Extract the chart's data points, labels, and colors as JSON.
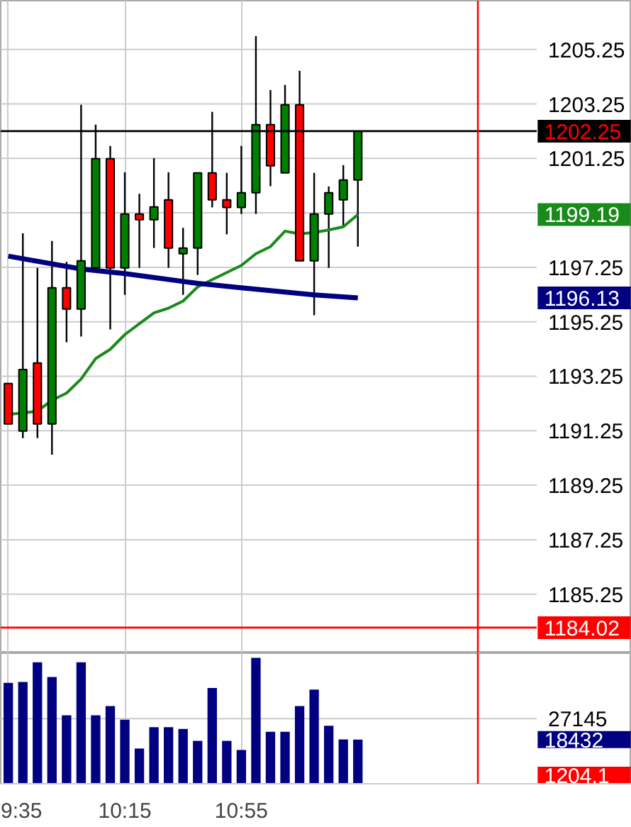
{
  "chart_data": [
    {
      "type": "candlestick",
      "x": [
        9.5833,
        9.6667,
        9.75,
        9.8333,
        9.9167,
        10.0,
        10.0833,
        10.1667,
        10.25,
        10.3333,
        10.4167,
        10.5,
        10.5833,
        10.6667,
        10.75,
        10.8333,
        10.9167,
        11.0,
        11.0833,
        11.1667,
        11.25,
        11.3333,
        11.4167,
        11.5,
        11.5833
      ],
      "ohlc": [
        [
          1192.98,
          1192.98,
          1191.5,
          1191.5
        ],
        [
          1191.24,
          1198.5,
          1190.98,
          1193.5
        ],
        [
          1193.74,
          1197.23,
          1190.98,
          1191.5
        ],
        [
          1191.5,
          1198.22,
          1190.37,
          1196.5
        ],
        [
          1196.5,
          1197.45,
          1194.5,
          1195.72
        ],
        [
          1195.72,
          1203.22,
          1194.71,
          1197.49
        ],
        [
          1197.23,
          1202.49,
          1197.23,
          1201.24
        ],
        [
          1201.24,
          1201.71,
          1194.97,
          1197.23
        ],
        [
          1197.23,
          1200.74,
          1196.24,
          1199.21
        ],
        [
          1199.21,
          1199.95,
          1197.23,
          1199.0
        ],
        [
          1199.0,
          1201.26,
          1197.96,
          1199.47
        ],
        [
          1199.73,
          1200.74,
          1197.23,
          1197.96
        ],
        [
          1197.75,
          1198.7,
          1196.24,
          1197.96
        ],
        [
          1197.96,
          1200.72,
          1196.97,
          1200.72
        ],
        [
          1200.72,
          1202.96,
          1199.45,
          1199.73
        ],
        [
          1199.73,
          1200.72,
          1198.46,
          1199.45
        ],
        [
          1199.45,
          1201.71,
          1199.21,
          1199.99
        ],
        [
          1199.99,
          1205.74,
          1199.21,
          1202.49
        ],
        [
          1202.49,
          1203.76,
          1200.23,
          1200.98
        ],
        [
          1200.72,
          1203.95,
          1200.72,
          1203.22
        ],
        [
          1203.22,
          1204.47,
          1197.49,
          1197.49
        ],
        [
          1197.49,
          1200.72,
          1195.49,
          1199.21
        ],
        [
          1199.21,
          1200.22,
          1197.23,
          1199.99
        ],
        [
          1199.73,
          1201.0,
          1198.72,
          1200.46
        ],
        [
          1200.46,
          1202.25,
          1198.01,
          1202.25
        ]
      ],
      "colors": [
        "#ff0000",
        "#008000",
        "#ff0000",
        "#008000",
        "#ff0000",
        "#008000",
        "#008000",
        "#ff0000",
        "#008000",
        "#ff0000",
        "#008000",
        "#ff0000",
        "#008000",
        "#008000",
        "#ff0000",
        "#ff0000",
        "#008000",
        "#008000",
        "#ff0000",
        "#008000",
        "#ff0000",
        "#008000",
        "#008000",
        "#008000",
        "#008000"
      ],
      "series": [
        {
          "type": "line",
          "color": "#1a8a1a",
          "values": [
            1191.85,
            1191.9,
            1191.97,
            1192.37,
            1192.63,
            1193.15,
            1193.9,
            1194.24,
            1194.78,
            1195.18,
            1195.58,
            1195.75,
            1196.01,
            1196.53,
            1196.8,
            1197.06,
            1197.32,
            1197.75,
            1198.01,
            1198.58,
            1198.48,
            1198.53,
            1198.62,
            1198.74,
            1199.19
          ]
        },
        {
          "type": "line",
          "color": "#000080",
          "x": [
            9.5833,
            10.0,
            10.25,
            10.6667,
            10.9167,
            11.3333,
            11.5833
          ],
          "values": [
            1197.66,
            1197.19,
            1197.02,
            1196.66,
            1196.5,
            1196.24,
            1196.13
          ]
        }
      ],
      "ylim": [
        1183.08,
        1207.04
      ],
      "yticks": [
        1205.25,
        1203.25,
        1201.25,
        {
          "value": 1199.25,
          "label": null
        },
        1197.25,
        1195.25,
        1193.25,
        1191.25,
        1189.25,
        1187.25,
        1185.25
      ],
      "xlim": [
        9.54,
        13.15
      ],
      "xticks": [
        {
          "value": 9.5833,
          "label": null
        },
        {
          "value": 10.25,
          "label": null
        },
        {
          "value": 10.9167,
          "label": null
        }
      ],
      "tick_labels": "y",
      "grid": true,
      "ref_lines": [
        {
          "axis": "y",
          "value": 1202.25,
          "label": "1202.25",
          "color": "#000000"
        },
        {
          "axis": "y",
          "value": 1184.02,
          "label": "1184.02",
          "color": "#ff0000"
        },
        {
          "axis": "x",
          "value": 12.27,
          "color": "#ff0000"
        }
      ],
      "annotations": [
        "1199.19",
        "1196.13"
      ]
    },
    {
      "type": "bar",
      "x": [
        9.5833,
        9.6667,
        9.75,
        9.8333,
        9.9167,
        10.0,
        10.0833,
        10.1667,
        10.25,
        10.3333,
        10.4167,
        10.5,
        10.5833,
        10.6667,
        10.75,
        10.8333,
        10.9167,
        11.0,
        11.0833,
        11.1667,
        11.25,
        11.3333,
        11.4167,
        11.5,
        11.5833
      ],
      "series": [
        {
          "color": "#000080",
          "values": [
            42100,
            42500,
            50700,
            44600,
            28600,
            50700,
            28600,
            32400,
            26700,
            14700,
            23600,
            23600,
            22900,
            17900,
            40000,
            17900,
            14100,
            52600,
            21700,
            21700,
            32400,
            39300,
            24200,
            18500,
            18432
          ]
        }
      ],
      "ylim": [
        0,
        54500
      ],
      "yticks": [
        27145
      ],
      "xlim": [
        9.54,
        13.15
      ],
      "xticks": [
        {
          "value": 9.5833,
          "label": "9:35"
        },
        {
          "value": 10.25,
          "label": "10:15"
        },
        {
          "value": 10.9167,
          "label": "10:55"
        }
      ],
      "grid": true,
      "ref_lines": [
        {
          "axis": "x",
          "value": 12.27,
          "color": "#ff0000"
        }
      ],
      "annotations": [
        "18432",
        "1204.1"
      ]
    }
  ]
}
